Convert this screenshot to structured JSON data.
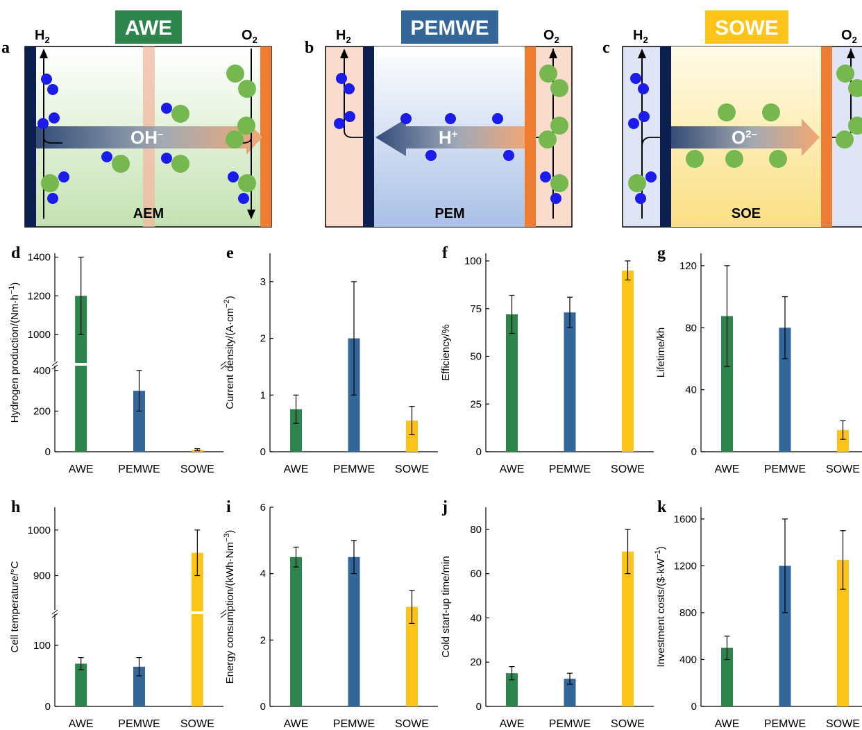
{
  "colors": {
    "awe": "#2e844d",
    "pemwe": "#336699",
    "sowe": "#fcc419",
    "cathode": "#0c1f4f",
    "anode": "#ee7d31",
    "bubble_blue": "#1b1bea",
    "bubble_green": "#76b84f"
  },
  "schematics": [
    {
      "panel": "a",
      "title": "AWE",
      "ion": "OH",
      "ion_sup": "–",
      "membrane": "AEM",
      "h2": "H",
      "o2": "O",
      "sub": "2"
    },
    {
      "panel": "b",
      "title": "PEMWE",
      "ion": "H",
      "ion_sup": "+",
      "membrane": "PEM",
      "h2": "H",
      "o2": "O",
      "sub": "2"
    },
    {
      "panel": "c",
      "title": "SOWE",
      "ion": "O",
      "ion_sup": "2–",
      "membrane": "SOE",
      "h2": "H",
      "o2": "O",
      "sub": "2"
    }
  ],
  "chart_data": [
    {
      "panel": "d",
      "type": "bar",
      "categories": [
        "AWE",
        "PEMWE",
        "SOWE"
      ],
      "ylabel": "Hydrogen production/(Nm·h",
      "ylabel_sup": "−1",
      "ylabel_end": ")",
      "values": [
        1200,
        300,
        10
      ],
      "errors": [
        [
          1000,
          1400
        ],
        [
          200,
          400
        ],
        [
          5,
          15
        ]
      ],
      "axis_break": {
        "lower": [
          0,
          420
        ],
        "upper": [
          850,
          1420
        ]
      },
      "yticks": [
        "0",
        "200",
        "400",
        "1000",
        "1200",
        "1400"
      ]
    },
    {
      "panel": "e",
      "type": "bar",
      "categories": [
        "AWE",
        "PEMWE",
        "SOWE"
      ],
      "ylabel": "Current density/(A·cm",
      "ylabel_sup": "−2",
      "ylabel_end": ")",
      "values": [
        0.75,
        2.0,
        0.55
      ],
      "errors": [
        [
          0.5,
          1.0
        ],
        [
          1.0,
          3.0
        ],
        [
          0.3,
          0.8
        ]
      ],
      "ylim": [
        0,
        3.5
      ],
      "yticks": [
        "0",
        "1",
        "2",
        "3"
      ]
    },
    {
      "panel": "f",
      "type": "bar",
      "categories": [
        "AWE",
        "PEMWE",
        "SOWE"
      ],
      "ylabel": "Efficiency/%",
      "ylabel_sup": "",
      "ylabel_end": "",
      "values": [
        72,
        73,
        95
      ],
      "errors": [
        [
          62,
          82
        ],
        [
          65,
          81
        ],
        [
          90,
          100
        ]
      ],
      "ylim": [
        0,
        104
      ],
      "yticks": [
        "0",
        "25",
        "50",
        "75",
        "100"
      ]
    },
    {
      "panel": "g",
      "type": "bar",
      "categories": [
        "AWE",
        "PEMWE",
        "SOWE"
      ],
      "ylabel": "Lifetime/kh",
      "ylabel_sup": "",
      "ylabel_end": "",
      "values": [
        87.5,
        80,
        14
      ],
      "errors": [
        [
          55,
          120
        ],
        [
          60,
          100
        ],
        [
          8,
          20
        ]
      ],
      "ylim": [
        0,
        128
      ],
      "yticks": [
        "0",
        "40",
        "80",
        "120"
      ]
    },
    {
      "panel": "h",
      "type": "bar",
      "categories": [
        "AWE",
        "PEMWE",
        "SOWE"
      ],
      "ylabel": "Cell temperature/°C",
      "ylabel_sup": "",
      "ylabel_end": "",
      "values": [
        70,
        65,
        950
      ],
      "errors": [
        [
          60,
          80
        ],
        [
          50,
          80
        ],
        [
          900,
          1000
        ]
      ],
      "axis_break": {
        "lower": [
          0,
          150
        ],
        "upper": [
          820,
          1050
        ]
      },
      "yticks": [
        "0",
        "100",
        "900",
        "1000"
      ]
    },
    {
      "panel": "i",
      "type": "bar",
      "categories": [
        "AWE",
        "PEMWE",
        "SOWE"
      ],
      "ylabel": "Energy consumption/(kWh·Nm",
      "ylabel_sup": "−3",
      "ylabel_end": ")",
      "values": [
        4.5,
        4.5,
        3.0
      ],
      "errors": [
        [
          4.2,
          4.8
        ],
        [
          4.0,
          5.0
        ],
        [
          2.5,
          3.5
        ]
      ],
      "ylim": [
        0,
        6
      ],
      "yticks": [
        "0",
        "2",
        "4",
        "6"
      ]
    },
    {
      "panel": "j",
      "type": "bar",
      "categories": [
        "AWE",
        "PEMWE",
        "SOWE"
      ],
      "ylabel": "Cold start-up time/min",
      "ylabel_sup": "",
      "ylabel_end": "",
      "values": [
        15,
        12.5,
        70
      ],
      "errors": [
        [
          12,
          18
        ],
        [
          10,
          15
        ],
        [
          60,
          80
        ]
      ],
      "ylim": [
        0,
        90
      ],
      "yticks": [
        "0",
        "20",
        "40",
        "60",
        "80"
      ]
    },
    {
      "panel": "k",
      "type": "bar",
      "categories": [
        "AWE",
        "PEMWE",
        "SOWE"
      ],
      "ylabel": "Investment costs/($·kW",
      "ylabel_sup": "−1",
      "ylabel_end": ")",
      "values": [
        500,
        1200,
        1250
      ],
      "errors": [
        [
          400,
          600
        ],
        [
          800,
          1600
        ],
        [
          1000,
          1500
        ]
      ],
      "ylim": [
        0,
        1700
      ],
      "yticks": [
        "0",
        "400",
        "800",
        "1200",
        "1600"
      ]
    }
  ]
}
